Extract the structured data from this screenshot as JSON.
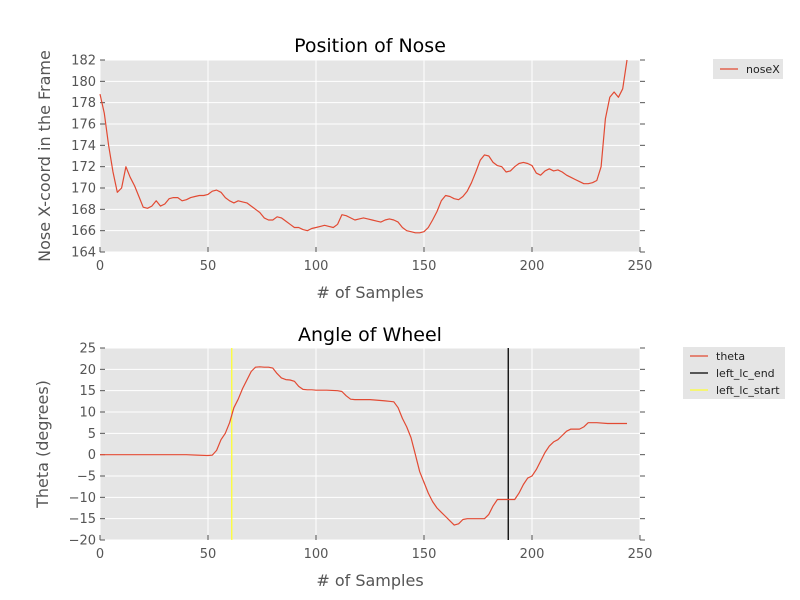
{
  "colors": {
    "plot_bg": "#e5e5e5",
    "grid": "#ffffff",
    "legend_bg": "#e5e5e5",
    "nose_line": "#e24a33",
    "theta_line": "#e24a33",
    "end_line": "#000000",
    "start_line": "#ffff33"
  },
  "chart_data": [
    {
      "type": "line",
      "title": "Position of Nose",
      "xlabel": "# of Samples",
      "ylabel": "Nose X-coord in the Frame",
      "xlim": [
        0,
        250
      ],
      "ylim": [
        164,
        182
      ],
      "xticks": [
        "0",
        "50",
        "100",
        "150",
        "200",
        "250"
      ],
      "yticks": [
        "164",
        "166",
        "168",
        "170",
        "172",
        "174",
        "176",
        "178",
        "180",
        "182"
      ],
      "grid": true,
      "legend_position": "outside-right",
      "series": [
        {
          "name": "noseX",
          "x": [
            0,
            2,
            4,
            6,
            8,
            10,
            12,
            14,
            16,
            18,
            20,
            22,
            24,
            26,
            28,
            30,
            32,
            34,
            36,
            38,
            40,
            42,
            44,
            46,
            48,
            50,
            52,
            54,
            56,
            58,
            60,
            62,
            64,
            66,
            68,
            70,
            72,
            74,
            76,
            78,
            80,
            82,
            84,
            86,
            88,
            90,
            92,
            94,
            96,
            98,
            100,
            102,
            104,
            106,
            108,
            110,
            112,
            114,
            116,
            118,
            120,
            122,
            124,
            126,
            128,
            130,
            132,
            134,
            136,
            138,
            140,
            142,
            144,
            146,
            148,
            150,
            152,
            154,
            156,
            158,
            160,
            162,
            164,
            166,
            168,
            170,
            172,
            174,
            176,
            178,
            180,
            182,
            184,
            186,
            188,
            190,
            192,
            194,
            196,
            198,
            200,
            202,
            204,
            206,
            208,
            210,
            212,
            214,
            216,
            218,
            220,
            222,
            224,
            226,
            228,
            230,
            232,
            234,
            236,
            238,
            240,
            242,
            244
          ],
          "y": [
            178.8,
            177,
            174,
            171.5,
            169.6,
            170,
            172,
            171,
            170.2,
            169.2,
            168.2,
            168.1,
            168.3,
            168.8,
            168.3,
            168.5,
            169,
            169.1,
            169.1,
            168.8,
            168.9,
            169.1,
            169.2,
            169.3,
            169.3,
            169.4,
            169.7,
            169.8,
            169.6,
            169.1,
            168.8,
            168.6,
            168.8,
            168.7,
            168.6,
            168.3,
            168,
            167.7,
            167.2,
            167,
            167,
            167.3,
            167.2,
            166.9,
            166.6,
            166.3,
            166.3,
            166.1,
            166,
            166.2,
            166.3,
            166.4,
            166.5,
            166.4,
            166.3,
            166.6,
            167.5,
            167.4,
            167.2,
            167,
            167.1,
            167.2,
            167.1,
            167,
            166.9,
            166.8,
            167,
            167.1,
            167,
            166.8,
            166.3,
            166,
            165.9,
            165.8,
            165.8,
            165.9,
            166.3,
            167,
            167.8,
            168.8,
            169.3,
            169.2,
            169,
            168.9,
            169.2,
            169.7,
            170.5,
            171.5,
            172.6,
            173.1,
            173,
            172.4,
            172.1,
            172,
            171.5,
            171.6,
            172,
            172.3,
            172.4,
            172.3,
            172.1,
            171.4,
            171.2,
            171.6,
            171.8,
            171.6,
            171.7,
            171.5,
            171.2,
            171,
            170.8,
            170.6,
            170.4,
            170.4,
            170.5,
            170.7,
            172,
            176.5,
            178.5,
            179,
            178.5,
            179.3,
            182
          ]
        }
      ]
    },
    {
      "type": "line",
      "title": "Angle of Wheel",
      "xlabel": "# of Samples",
      "ylabel": "Theta (degrees)",
      "xlim": [
        0,
        250
      ],
      "ylim": [
        -20,
        25
      ],
      "xticks": [
        "0",
        "50",
        "100",
        "150",
        "200",
        "250"
      ],
      "yticks": [
        "−20",
        "−15",
        "−10",
        "−5",
        "0",
        "5",
        "10",
        "15",
        "20",
        "25"
      ],
      "grid": true,
      "legend_position": "outside-right",
      "series": [
        {
          "name": "theta",
          "x": [
            0,
            10,
            20,
            30,
            40,
            45,
            50,
            52,
            54,
            56,
            58,
            60,
            62,
            64,
            66,
            68,
            70,
            72,
            74,
            76,
            78,
            80,
            82,
            84,
            86,
            88,
            90,
            92,
            94,
            96,
            98,
            100,
            105,
            110,
            112,
            114,
            116,
            118,
            120,
            125,
            130,
            132,
            134,
            136,
            138,
            140,
            142,
            144,
            146,
            148,
            150,
            152,
            154,
            156,
            158,
            160,
            162,
            164,
            166,
            168,
            170,
            172,
            174,
            176,
            178,
            180,
            182,
            184,
            186,
            188,
            190,
            192,
            194,
            196,
            198,
            200,
            202,
            204,
            206,
            208,
            210,
            212,
            214,
            216,
            218,
            220,
            222,
            224,
            226,
            230,
            235,
            240,
            244
          ],
          "y": [
            0,
            0,
            0,
            0,
            0,
            -0.1,
            -0.2,
            -0.1,
            1,
            3.5,
            5,
            7.5,
            11,
            13,
            15.5,
            17.5,
            19.5,
            20.5,
            20.6,
            20.5,
            20.5,
            20.3,
            19,
            18,
            17.6,
            17.5,
            17.2,
            16,
            15.3,
            15.2,
            15.2,
            15.1,
            15.1,
            15,
            14.8,
            13.8,
            13,
            12.9,
            12.9,
            12.9,
            12.7,
            12.6,
            12.5,
            12.4,
            11,
            8.5,
            6.5,
            4,
            0,
            -4,
            -6.5,
            -9,
            -11,
            -12.5,
            -13.5,
            -14.5,
            -15.5,
            -16.5,
            -16.2,
            -15.2,
            -15,
            -15,
            -15,
            -15,
            -15,
            -14,
            -12,
            -10.5,
            -10.5,
            -10.5,
            -10.5,
            -10.5,
            -9,
            -7,
            -5.5,
            -5,
            -3.5,
            -1.5,
            0.5,
            2,
            3,
            3.5,
            4.5,
            5.5,
            6,
            6,
            6,
            6.5,
            7.5,
            7.5,
            7.3,
            7.3,
            7.3
          ]
        }
      ],
      "vlines": [
        {
          "name": "left_lc_end",
          "x": 189,
          "color": "#000000"
        },
        {
          "name": "left_lc_start",
          "x": 61,
          "color": "#ffff33"
        }
      ]
    }
  ]
}
